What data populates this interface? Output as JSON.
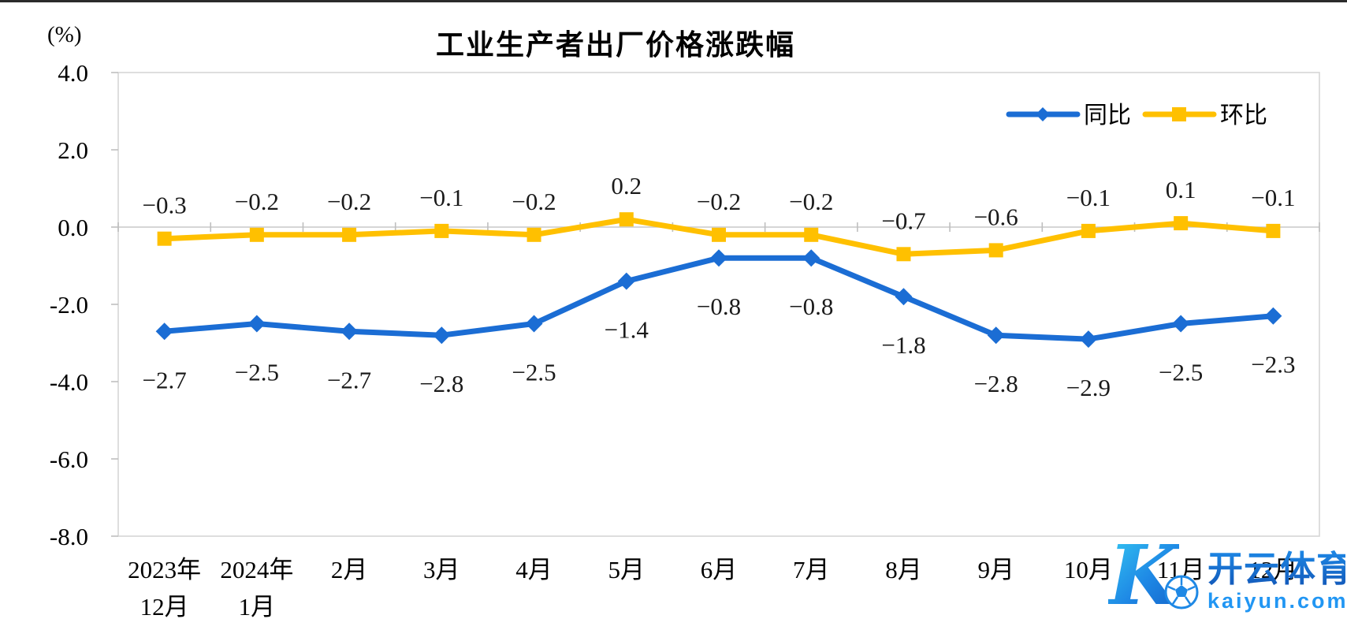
{
  "title": "工业生产者出厂价格涨跌幅",
  "y_unit": "(%)",
  "watermark": {
    "logo_letter": "K",
    "brand": "开云体育",
    "domain": "kaiyun.com",
    "brand_color": "#1767c9",
    "domain_color": "#2196f3"
  },
  "chart_data": {
    "type": "line",
    "title": "工业生产者出厂价格涨跌幅",
    "ylabel": "(%)",
    "xlabel": "",
    "ylim": [
      -8.0,
      4.0
    ],
    "ytick_step": 2.0,
    "yticks": [
      "4.0",
      "2.0",
      "0.0",
      "-2.0",
      "-4.0",
      "-6.0",
      "-8.0"
    ],
    "grid": "zero-line-only",
    "legend_position": "top-right",
    "categories": [
      "2023年12月",
      "2024年1月",
      "2月",
      "3月",
      "4月",
      "5月",
      "6月",
      "7月",
      "8月",
      "9月",
      "10月",
      "11月",
      "12月"
    ],
    "categories_multiline": [
      [
        "2023年",
        "12月"
      ],
      [
        "2024年",
        "1月"
      ],
      [
        "2月"
      ],
      [
        "3月"
      ],
      [
        "4月"
      ],
      [
        "5月"
      ],
      [
        "6月"
      ],
      [
        "7月"
      ],
      [
        "8月"
      ],
      [
        "9月"
      ],
      [
        "10月"
      ],
      [
        "11月"
      ],
      [
        "12月"
      ]
    ],
    "series": [
      {
        "name": "同比",
        "color": "#1b6dd4",
        "marker": "diamond",
        "label_position": "below",
        "values": [
          -2.7,
          -2.5,
          -2.7,
          -2.8,
          -2.5,
          -1.4,
          -0.8,
          -0.8,
          -1.8,
          -2.8,
          -2.9,
          -2.5,
          -2.3
        ],
        "labels": [
          "−2.7",
          "−2.5",
          "−2.7",
          "−2.8",
          "−2.5",
          "−1.4",
          "−0.8",
          "−0.8",
          "−1.8",
          "−2.8",
          "−2.9",
          "−2.5",
          "−2.3"
        ]
      },
      {
        "name": "环比",
        "color": "#ffc000",
        "marker": "square",
        "label_position": "above",
        "values": [
          -0.3,
          -0.2,
          -0.2,
          -0.1,
          -0.2,
          0.2,
          -0.2,
          -0.2,
          -0.7,
          -0.6,
          -0.1,
          0.1,
          -0.1
        ],
        "labels": [
          "−0.3",
          "−0.2",
          "−0.2",
          "−0.1",
          "−0.2",
          "0.2",
          "−0.2",
          "−0.2",
          "−0.7",
          "−0.6",
          "−0.1",
          "0.1",
          "−0.1"
        ]
      }
    ],
    "colors": {
      "plot_border": "#d6d6d6",
      "zero_line": "#c8c8c8",
      "tick": "#bfbfbf",
      "axis_text": "#000000",
      "data_label_text": "#1a1a1a"
    }
  }
}
